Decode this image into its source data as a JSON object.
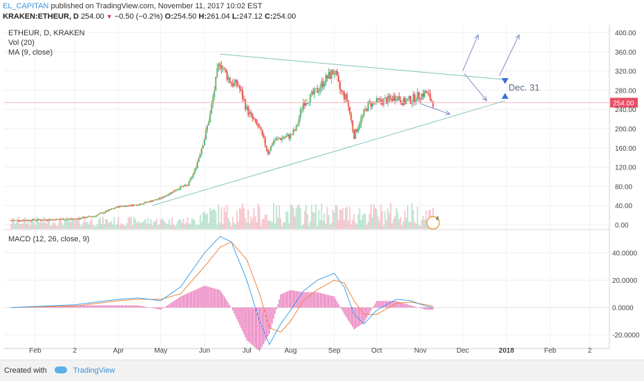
{
  "header": {
    "author": "EL_CAPITAN",
    "published_text": " published on TradingView.com, November 11, 2017 10:02 EST",
    "symbol": "KRAKEN:ETHEUR, D",
    "last": "254.00",
    "change": "−0.50 (−0.2%)",
    "o_label": "O:",
    "o_value": "254.50",
    "h_label": "H:",
    "h_value": "261.04",
    "l_label": "L:",
    "l_value": "247.12",
    "c_label": "C:",
    "c_value": "254.00"
  },
  "legend": {
    "main_title": "ETHEUR, D, KRAKEN",
    "vol_label": "Vol (20)",
    "ma_label": "MA (9, close)",
    "macd_label": "MACD (12, 26, close, 9)"
  },
  "annotation": {
    "text": "Dec. 31",
    "event_badge": "4"
  },
  "footer": {
    "created_with": "Created with",
    "brand": "TradingView"
  },
  "colors": {
    "up": "#4fb88d",
    "down": "#e84d64",
    "ma": "#f5a623",
    "trend": "#7ec4b8",
    "projection": "#7c8cc8",
    "price_line": "#f4b8c0",
    "macd": "#3f9fe8",
    "signal": "#f0823a",
    "hist": "#e040a0",
    "badge": "#3a6fd8"
  },
  "chart_data": [
    {
      "type": "line",
      "title": "ETHEUR, D, KRAKEN",
      "subtitle": "Vol (20) · MA (9, close)",
      "x": [
        "2017-01-15",
        "2017-02-01",
        "2017-02-15",
        "2017-03-01",
        "2017-03-10",
        "2017-03-15",
        "2017-04-01",
        "2017-04-15",
        "2017-05-01",
        "2017-05-10",
        "2017-05-15",
        "2017-05-20",
        "2017-05-25",
        "2017-06-01",
        "2017-06-05",
        "2017-06-10",
        "2017-06-12",
        "2017-06-15",
        "2017-06-20",
        "2017-06-25",
        "2017-07-01",
        "2017-07-05",
        "2017-07-10",
        "2017-07-16",
        "2017-07-20",
        "2017-07-25",
        "2017-08-01",
        "2017-08-05",
        "2017-08-10",
        "2017-08-15",
        "2017-08-20",
        "2017-08-25",
        "2017-09-01",
        "2017-09-05",
        "2017-09-10",
        "2017-09-15",
        "2017-09-20",
        "2017-09-25",
        "2017-10-01",
        "2017-10-10",
        "2017-10-15",
        "2017-10-20",
        "2017-10-25",
        "2017-11-01",
        "2017-11-05",
        "2017-11-10"
      ],
      "series": [
        {
          "name": "ETHEUR",
          "values": [
            9,
            10,
            11,
            12,
            16,
            18,
            38,
            42,
            55,
            70,
            78,
            82,
            112,
            180,
            230,
            315,
            340,
            320,
            295,
            290,
            240,
            220,
            200,
            150,
            175,
            180,
            185,
            200,
            255,
            265,
            280,
            300,
            320,
            280,
            260,
            185,
            220,
            250,
            255,
            260,
            268,
            255,
            260,
            270,
            275,
            254
          ]
        }
      ],
      "price_axis_ticks": [
        0,
        40,
        80,
        120,
        160,
        200,
        240,
        280,
        320,
        360,
        400
      ],
      "ylim": [
        -10,
        410
      ],
      "last_price": 254.0,
      "x_tick_labels": [
        "Feb",
        "2",
        "Apr",
        "May",
        "Jun",
        "Jul",
        "Aug",
        "Sep",
        "Oct",
        "Nov",
        "Dec",
        "2018",
        "Feb",
        "2"
      ],
      "x_tick_dates": [
        "2017-02-01",
        "2017-03-01",
        "2017-04-01",
        "2017-05-01",
        "2017-06-01",
        "2017-07-01",
        "2017-08-01",
        "2017-09-01",
        "2017-10-01",
        "2017-11-01",
        "2017-12-01",
        "2018-01-01",
        "2018-02-01",
        "2018-03-01"
      ],
      "xlim": [
        "2017-01-10",
        "2018-03-15"
      ],
      "trendlines": [
        {
          "from": [
            "2017-06-12",
            355
          ],
          "to": [
            "2017-12-31",
            302
          ]
        },
        {
          "from": [
            "2017-04-25",
            40
          ],
          "to": [
            "2017-12-31",
            258
          ]
        }
      ],
      "projection": [
        [
          "2017-11-01",
          252
        ],
        [
          "2017-11-22",
          230
        ],
        [
          "2017-12-02",
          315
        ],
        [
          "2017-12-18",
          258
        ],
        [
          "2017-12-01",
          320
        ],
        [
          "2017-12-12",
          395
        ],
        [
          "2017-12-27",
          310
        ],
        [
          "2018-01-10",
          395
        ]
      ],
      "grid": true
    },
    {
      "type": "bar",
      "title": "Vol (20)",
      "note": "volume histogram, unscaled"
    },
    {
      "type": "line",
      "title": "MACD (12, 26, close, 9)",
      "x": [
        "2017-01-15",
        "2017-03-01",
        "2017-04-01",
        "2017-04-15",
        "2017-05-01",
        "2017-05-15",
        "2017-06-01",
        "2017-06-12",
        "2017-06-20",
        "2017-07-01",
        "2017-07-10",
        "2017-07-17",
        "2017-07-25",
        "2017-08-01",
        "2017-08-10",
        "2017-08-20",
        "2017-09-01",
        "2017-09-08",
        "2017-09-15",
        "2017-09-22",
        "2017-10-01",
        "2017-10-15",
        "2017-10-25",
        "2017-11-05",
        "2017-11-10"
      ],
      "series": [
        {
          "name": "MACD",
          "values": [
            0,
            2,
            6,
            7,
            5,
            15,
            40,
            52,
            48,
            20,
            -10,
            -27,
            -12,
            -2,
            12,
            20,
            25,
            15,
            -5,
            -12,
            -2,
            6,
            5,
            1,
            0
          ]
        },
        {
          "name": "Signal",
          "values": [
            0,
            1,
            5,
            6,
            6,
            10,
            30,
            44,
            48,
            35,
            10,
            -15,
            -18,
            -10,
            5,
            13,
            20,
            18,
            5,
            -5,
            -5,
            3,
            4,
            2,
            1
          ]
        }
      ],
      "y_ticks": [
        -20,
        0,
        20,
        40
      ],
      "ylim": [
        -30,
        55
      ],
      "grid": true
    }
  ]
}
